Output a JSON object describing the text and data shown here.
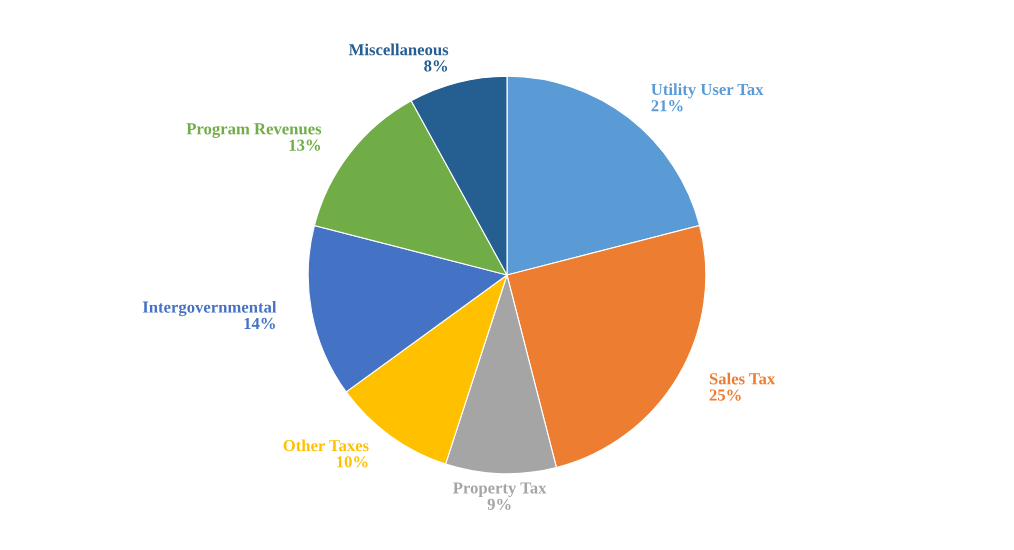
{
  "chart_data": {
    "type": "pie",
    "categories": [
      "Utility User Tax",
      "Sales Tax",
      "Property Tax",
      "Other Taxes",
      "Intergovernmental",
      "Program Revenues",
      "Miscellaneous"
    ],
    "values": [
      21,
      25,
      9,
      10,
      14,
      13,
      8
    ],
    "value_labels": [
      "21%",
      "25%",
      "9%",
      "10%",
      "14%",
      "13%",
      "8%"
    ],
    "colors": [
      "#5b9bd5",
      "#ed7d31",
      "#a5a5a5",
      "#ffc000",
      "#4472c4",
      "#70ad47",
      "#255e91"
    ],
    "legend": false
  }
}
